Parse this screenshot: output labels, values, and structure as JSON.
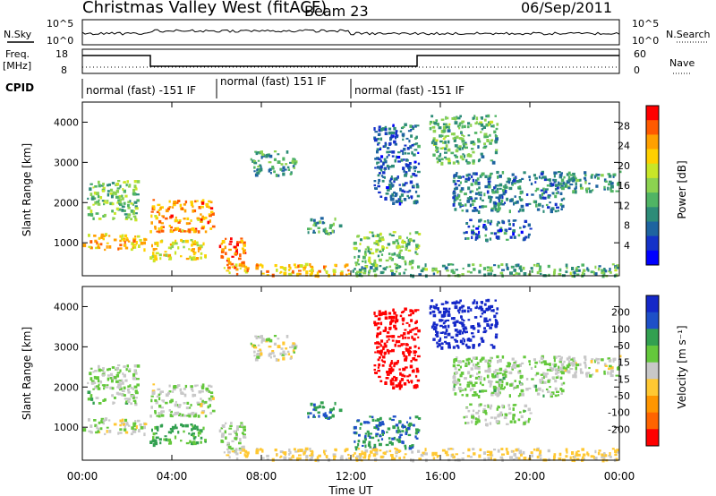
{
  "header": {
    "station": "Christmas Valley West (fitACF)",
    "beam": "Beam 23",
    "date": "06/Sep/2011"
  },
  "top_panels": {
    "nsky_label": "N.Sky",
    "nsky_tick_high": "10^5",
    "nsky_tick_low": "10^0",
    "nsearch_label": "N.Search",
    "freq_label": "Freq.",
    "freq_unit": "[MHz]",
    "freq_ticks": [
      "18",
      "8"
    ],
    "nave_label": "Nave",
    "nave_ticks": [
      "60",
      "0"
    ],
    "cpid_label": "CPID",
    "cpid_segments": [
      {
        "label": "normal (fast) -151 IF",
        "start": "00:00",
        "end": "06:00"
      },
      {
        "label": "normal (fast) 151 IF",
        "start": "06:00",
        "end": "12:00"
      },
      {
        "label": "normal (fast) -151 IF",
        "start": "12:00",
        "end": "24:00"
      }
    ]
  },
  "colorbars": {
    "power": {
      "label": "Power [dB]",
      "ticks": [
        "28",
        "24",
        "20",
        "16",
        "12",
        "8",
        "4"
      ],
      "colors": [
        "#ff0000",
        "#ff5a00",
        "#ffa000",
        "#ffd000",
        "#c8e628",
        "#8cd250",
        "#50b464",
        "#2d8c78",
        "#1e64a0",
        "#1432c8",
        "#0000ff"
      ]
    },
    "velocity": {
      "label": "Velocity [m s⁻¹]",
      "ticks": [
        "200",
        "100",
        "50",
        "15",
        "-15",
        "-50",
        "-100",
        "-200"
      ],
      "colors": [
        "#1428c8",
        "#1e50c8",
        "#32a050",
        "#64c83c",
        "#c8c8c8",
        "#ffc832",
        "#ff9600",
        "#ff6400",
        "#ff0000"
      ]
    }
  },
  "chart_data": {
    "type": "heatmap",
    "xlabel": "Time UT",
    "ylabel": "Slant Range [km]",
    "x_ticks": [
      "00:00",
      "04:00",
      "08:00",
      "12:00",
      "16:00",
      "20:00",
      "00:00"
    ],
    "y_ticks": [
      "1000",
      "2000",
      "3000",
      "4000"
    ],
    "xlim_hours": [
      0,
      24
    ],
    "ylim_km": [
      180,
      4500
    ],
    "panels": [
      "power",
      "velocity"
    ],
    "echo_regions": [
      {
        "t": [
          0.0,
          2.8
        ],
        "r": [
          850,
          1250
        ],
        "power": 22,
        "velocity": -15
      },
      {
        "t": [
          0.2,
          2.5
        ],
        "r": [
          1600,
          2600
        ],
        "power": 14,
        "velocity": 5
      },
      {
        "t": [
          3.0,
          5.8
        ],
        "r": [
          1300,
          2100
        ],
        "power": 24,
        "velocity": -5
      },
      {
        "t": [
          3.0,
          5.5
        ],
        "r": [
          600,
          1100
        ],
        "power": 20,
        "velocity": 40
      },
      {
        "t": [
          6.1,
          7.2
        ],
        "r": [
          400,
          1150
        ],
        "power": 26,
        "velocity": 0
      },
      {
        "t": [
          6.3,
          12.0
        ],
        "r": [
          200,
          500
        ],
        "power": 22,
        "velocity": -40
      },
      {
        "t": [
          7.5,
          9.5
        ],
        "r": [
          2700,
          3300
        ],
        "power": 10,
        "velocity": -20
      },
      {
        "t": [
          10.0,
          11.5
        ],
        "r": [
          1250,
          1650
        ],
        "power": 10,
        "velocity": 60
      },
      {
        "t": [
          12.1,
          15.0
        ],
        "r": [
          500,
          1300
        ],
        "power": 14,
        "velocity": 70
      },
      {
        "t": [
          12.0,
          24.0
        ],
        "r": [
          200,
          500
        ],
        "power": 12,
        "velocity": -40
      },
      {
        "t": [
          13.0,
          15.0
        ],
        "r": [
          2000,
          4000
        ],
        "power": 6,
        "velocity": -250
      },
      {
        "t": [
          15.5,
          18.5
        ],
        "r": [
          3000,
          4200
        ],
        "power": 12,
        "velocity": 200
      },
      {
        "t": [
          16.5,
          21.5
        ],
        "r": [
          1800,
          2800
        ],
        "power": 8,
        "velocity": 5
      },
      {
        "t": [
          17.0,
          20.0
        ],
        "r": [
          1100,
          1600
        ],
        "power": 6,
        "velocity": 5
      },
      {
        "t": [
          21.0,
          24.0
        ],
        "r": [
          2300,
          2800
        ],
        "power": 10,
        "velocity": -10
      }
    ]
  }
}
